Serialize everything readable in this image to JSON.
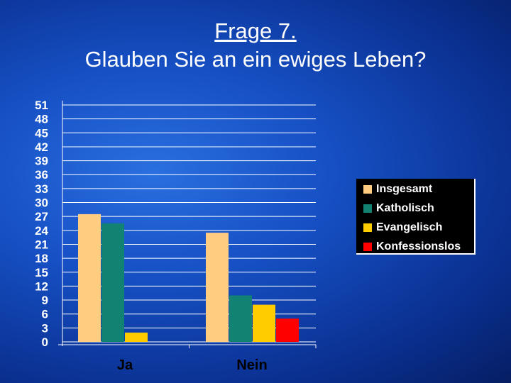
{
  "title": {
    "line1": "Frage 7.",
    "line2": "Glauben Sie an ein ewiges Leben?"
  },
  "chart_data": {
    "type": "bar",
    "categories": [
      "Ja",
      "Nein"
    ],
    "series": [
      {
        "name": "Insgesamt",
        "color": "#ffcc80",
        "values": [
          27.5,
          23.5
        ]
      },
      {
        "name": "Katholisch",
        "color": "#128272",
        "values": [
          25.5,
          10
        ]
      },
      {
        "name": "Evangelisch",
        "color": "#ffcc00",
        "values": [
          2,
          8
        ]
      },
      {
        "name": "Konfessionslos",
        "color": "#ff0000",
        "values": [
          0,
          5
        ]
      }
    ],
    "yticks": [
      "0",
      "3",
      "6",
      "9",
      "12",
      "15",
      "18",
      "21",
      "24",
      "27",
      "30",
      "33",
      "36",
      "39",
      "42",
      "45",
      "48",
      "51"
    ],
    "ylim": [
      0,
      51
    ],
    "grid": true,
    "legend": "right"
  }
}
